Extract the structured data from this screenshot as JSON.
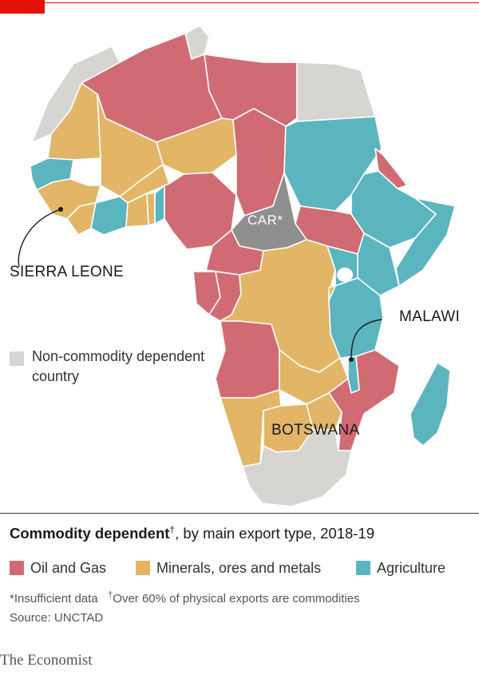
{
  "map_labels": {
    "sierra_leone": "SIERRA LEONE",
    "malawi": "MALAWI",
    "botswana": "BOTSWANA",
    "car": "CAR*"
  },
  "legend": {
    "non_commodity": "Non-commodity dependent country",
    "title_bold": "Commodity dependent",
    "title_dagger": "†",
    "title_rest": ", by main export type, 2018-19",
    "categories": [
      {
        "label": "Oil and Gas",
        "color": "#d16b73"
      },
      {
        "label": "Minerals, ores and metals",
        "color": "#e2b666"
      },
      {
        "label": "Agriculture",
        "color": "#5bb5bf"
      }
    ],
    "non_commodity_color": "#d6d5d2",
    "insufficient_color": "#8f8f8f"
  },
  "footnotes": {
    "insufficient": "*Insufficient data",
    "dagger_mark": "†",
    "dagger_text": "Over 60% of physical exports are commodities"
  },
  "source": "Source: UNCTAD",
  "brand": "The Economist"
}
